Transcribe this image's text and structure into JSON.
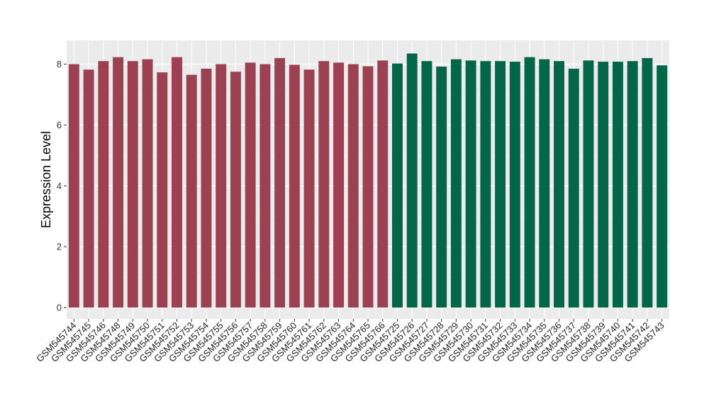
{
  "chart_data": {
    "type": "bar",
    "ylabel": "Expression Level",
    "xlabel": "",
    "ylim": [
      0,
      8.8
    ],
    "yticks": [
      0,
      2,
      4,
      6,
      8
    ],
    "grid": true,
    "background_color": "#ebebeb",
    "categories": [
      "GSM545744",
      "GSM545745",
      "GSM545746",
      "GSM545748",
      "GSM545749",
      "GSM545750",
      "GSM545751",
      "GSM545752",
      "GSM545753",
      "GSM545754",
      "GSM545755",
      "GSM545756",
      "GSM545757",
      "GSM545758",
      "GSM545759",
      "GSM545760",
      "GSM545761",
      "GSM545762",
      "GSM545763",
      "GSM545764",
      "GSM545765",
      "GSM545766",
      "GSM545725",
      "GSM545726",
      "GSM545727",
      "GSM545728",
      "GSM545729",
      "GSM545730",
      "GSM545731",
      "GSM545732",
      "GSM545733",
      "GSM545734",
      "GSM545735",
      "GSM545736",
      "GSM545737",
      "GSM545738",
      "GSM545739",
      "GSM545740",
      "GSM545741",
      "GSM545742",
      "GSM545743"
    ],
    "series": [
      {
        "color": "#9b4152",
        "values": [
          8.0,
          7.82,
          8.1,
          8.23,
          8.1,
          8.16,
          7.73,
          8.23,
          7.65,
          7.85,
          8.0,
          7.75,
          8.05,
          8.0,
          8.2,
          7.98,
          7.82,
          8.1,
          8.05,
          8.0,
          7.93,
          8.12,
          null,
          null,
          null,
          null,
          null,
          null,
          null,
          null,
          null,
          null,
          null,
          null,
          null,
          null,
          null,
          null,
          null,
          null,
          null
        ]
      },
      {
        "color": "#036646",
        "values": [
          null,
          null,
          null,
          null,
          null,
          null,
          null,
          null,
          null,
          null,
          null,
          null,
          null,
          null,
          null,
          null,
          null,
          null,
          null,
          null,
          null,
          null,
          8.02,
          8.35,
          8.1,
          7.92,
          8.16,
          8.12,
          8.1,
          8.1,
          8.08,
          8.23,
          8.16,
          8.1,
          7.85,
          8.12,
          8.08,
          8.08,
          8.1,
          8.2,
          7.96
        ]
      }
    ]
  }
}
